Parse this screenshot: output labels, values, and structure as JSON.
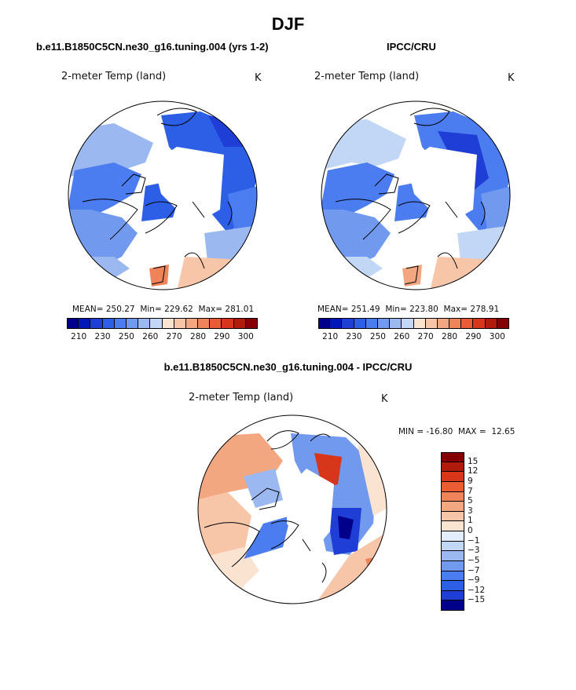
{
  "page": {
    "title": "DJF"
  },
  "panels": {
    "model": {
      "title": "b.e11.B1850C5CN.ne30_g16.tuning.004 (yrs 1-2)",
      "variable": "2-meter Temp (land)",
      "units": "K",
      "stats": {
        "mean": "250.27",
        "min": "229.62",
        "max": "281.01"
      }
    },
    "obs": {
      "title": "IPCC/CRU",
      "variable": "2-meter Temp (land)",
      "units": "K",
      "stats": {
        "mean": "251.49",
        "min": "223.80",
        "max": "278.91"
      }
    },
    "diff": {
      "title": "b.e11.B1850C5CN.ne30_g16.tuning.004 - IPCC/CRU",
      "variable": "2-meter Temp (land)",
      "units": "K",
      "stats": {
        "min": "-16.80",
        "max": "12.65"
      }
    }
  },
  "labels": {
    "mean": "MEAN=",
    "min": "Min=",
    "max": "Max=",
    "min_upper": "MIN =",
    "max_upper": "MAX ="
  },
  "colorbars": {
    "abs": {
      "tick_labels": [
        "210",
        "230",
        "250",
        "260",
        "270",
        "280",
        "290",
        "300"
      ],
      "colors": [
        "#00008a",
        "#0018b8",
        "#1e3ed6",
        "#2c5fe6",
        "#4b7cf0",
        "#7199ee",
        "#9bb8f1",
        "#c2d6f5",
        "#fbe3d2",
        "#f7c6a9",
        "#f3a780",
        "#ef845a",
        "#ea5c33",
        "#d7361a",
        "#b11b0c",
        "#850000"
      ]
    },
    "diff": {
      "tick_labels": [
        "15",
        "12",
        "9",
        "7",
        "5",
        "3",
        "1",
        "0",
        "−1",
        "−3",
        "−5",
        "−7",
        "−9",
        "−12",
        "−15"
      ],
      "colors": [
        "#850000",
        "#b11b0c",
        "#d7361a",
        "#ea5c33",
        "#ef845a",
        "#f3a780",
        "#f7c6a9",
        "#fbe3d2",
        "#e3edfb",
        "#c2d6f5",
        "#9bb8f1",
        "#7199ee",
        "#4b7cf0",
        "#2c5fe6",
        "#1e3ed6",
        "#00008a"
      ]
    }
  },
  "chart_data": [
    {
      "type": "heatmap",
      "title": "b.e11.B1850C5CN.ne30_g16.tuning.004 (yrs 1-2)",
      "subtitle": "2-meter Temp (land)",
      "units": "K",
      "projection": "polar stereographic, north pole",
      "mean": 250.27,
      "min": 229.62,
      "max": 281.01,
      "colorbar_ticks": [
        210,
        230,
        250,
        260,
        270,
        280,
        290,
        300
      ]
    },
    {
      "type": "heatmap",
      "title": "IPCC/CRU",
      "subtitle": "2-meter Temp (land)",
      "units": "K",
      "projection": "polar stereographic, north pole",
      "mean": 251.49,
      "min": 223.8,
      "max": 278.91,
      "colorbar_ticks": [
        210,
        230,
        250,
        260,
        270,
        280,
        290,
        300
      ]
    },
    {
      "type": "heatmap",
      "title": "b.e11.B1850C5CN.ne30_g16.tuning.004 - IPCC/CRU",
      "subtitle": "2-meter Temp (land)",
      "units": "K",
      "projection": "polar stereographic, north pole",
      "min": -16.8,
      "max": 12.65,
      "colorbar_ticks": [
        15,
        12,
        9,
        7,
        5,
        3,
        1,
        0,
        -1,
        -3,
        -5,
        -7,
        -9,
        -12,
        -15
      ]
    }
  ]
}
